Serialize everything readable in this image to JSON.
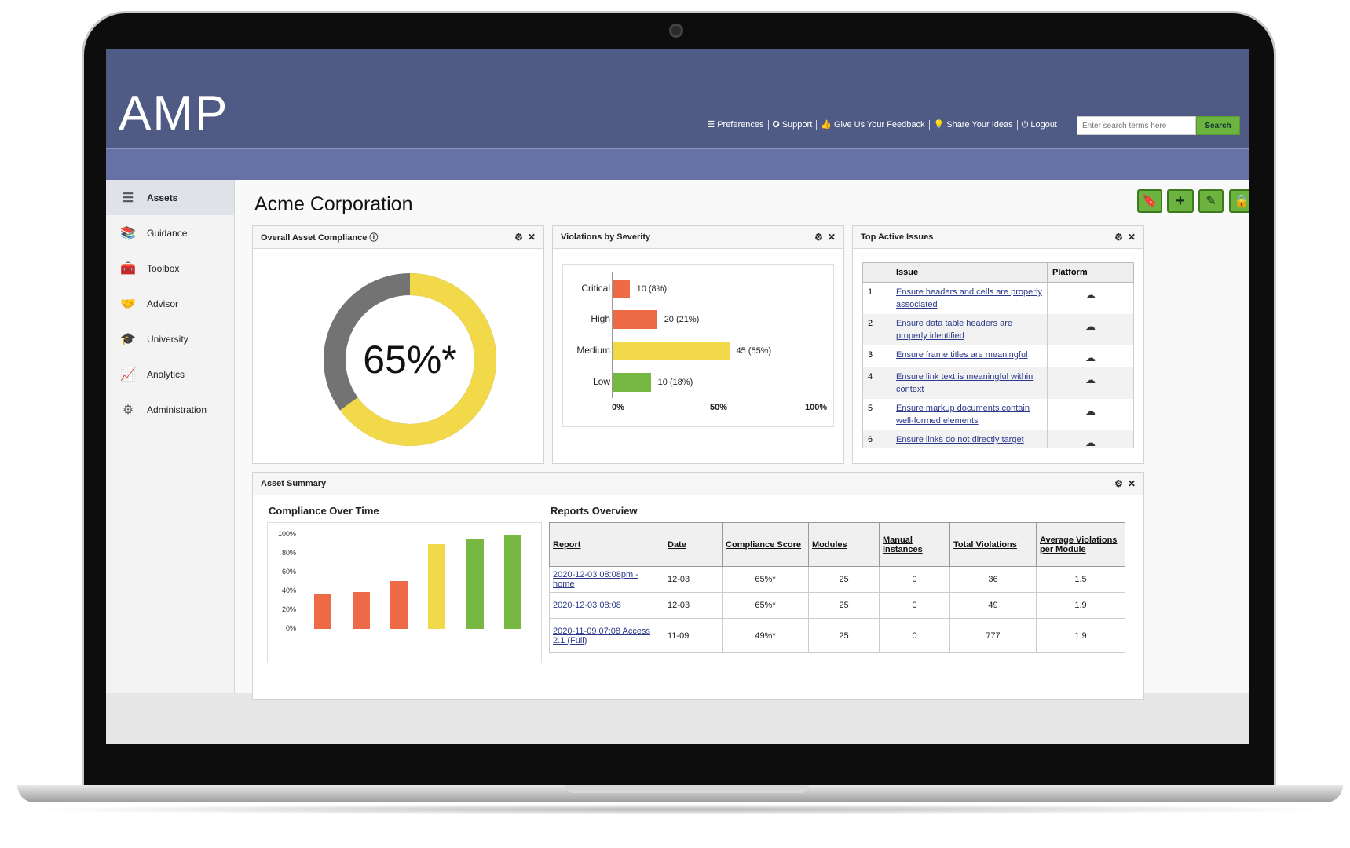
{
  "app": {
    "logo": "AMP"
  },
  "header": {
    "links": [
      {
        "icon": "☰",
        "label": "Preferences"
      },
      {
        "icon": "✪",
        "label": "Support"
      },
      {
        "icon": "👍",
        "label": "Give Us Your Feedback"
      },
      {
        "icon": "💡",
        "label": "Share Your Ideas"
      },
      {
        "icon": "⏻",
        "label": "Logout"
      }
    ],
    "search_placeholder": "Enter search terms here",
    "search_button": "Search"
  },
  "sidebar": {
    "items": [
      {
        "label": "Assets",
        "icon": "☰",
        "active": true
      },
      {
        "label": "Guidance",
        "icon": "📚"
      },
      {
        "label": "Toolbox",
        "icon": "🧰"
      },
      {
        "label": "Advisor",
        "icon": "🤝"
      },
      {
        "label": "University",
        "icon": "🎓"
      },
      {
        "label": "Analytics",
        "icon": "📈"
      },
      {
        "label": "Administration",
        "icon": "⚙"
      }
    ]
  },
  "page": {
    "title": "Acme Corporation",
    "tools": [
      {
        "name": "bookmark",
        "icon": "🔖"
      },
      {
        "name": "add",
        "icon": "+"
      },
      {
        "name": "edit",
        "icon": "✎"
      },
      {
        "name": "lock",
        "icon": "🔒"
      }
    ]
  },
  "compliance_panel": {
    "title": "Overall Asset Compliance",
    "info_icon": "ⓘ",
    "value_label": "65%*",
    "percent": 65,
    "colors": {
      "fill": "#f2d94a",
      "rest": "#737373"
    }
  },
  "severity_panel": {
    "title": "Violations by Severity",
    "chart_data": {
      "type": "bar",
      "orientation": "horizontal",
      "categories": [
        "Critical",
        "High",
        "Medium",
        "Low"
      ],
      "values": [
        10,
        20,
        45,
        10
      ],
      "percents": [
        8,
        21,
        55,
        18
      ],
      "value_labels": [
        "10 (8%)",
        "20 (21%)",
        "45 (55%)",
        "10 (18%)"
      ],
      "colors": [
        "#ee6a46",
        "#ee6a46",
        "#f2d94a",
        "#77b843"
      ],
      "xticks": [
        "0%",
        "50%",
        "100%"
      ],
      "xlim": [
        0,
        100
      ]
    }
  },
  "issues_panel": {
    "title": "Top Active Issues",
    "columns": [
      "",
      "Issue",
      "Platform"
    ],
    "rows": [
      {
        "num": "1",
        "issue": "Ensure headers and cells are properly associated"
      },
      {
        "num": "2",
        "issue": "Ensure data table headers are properly identified"
      },
      {
        "num": "3",
        "issue": "Ensure frame titles are meaningful"
      },
      {
        "num": "4",
        "issue": "Ensure link text is meaningful within context"
      },
      {
        "num": "5",
        "issue": "Ensure markup documents contain well-formed elements"
      },
      {
        "num": "6",
        "issue": "Ensure links do not directly target"
      }
    ],
    "platform_icon": "☁"
  },
  "asset_summary": {
    "title": "Asset Summary",
    "compliance_over_time": {
      "title": "Compliance Over Time",
      "chart_data": {
        "type": "bar",
        "yticks": [
          "100%",
          "80%",
          "60%",
          "40%",
          "20%",
          "0%"
        ],
        "ylim": [
          0,
          100
        ],
        "values": [
          37,
          39,
          51,
          90,
          96,
          100
        ],
        "colors": [
          "#ee6a46",
          "#ee6a46",
          "#ee6a46",
          "#f2d94a",
          "#77b843",
          "#77b843"
        ]
      }
    },
    "reports_overview": {
      "title": "Reports Overview",
      "columns": [
        "Report",
        "Date",
        "Compliance Score",
        "Modules",
        "Manual Instances",
        "Total Violations",
        "Average Violations per Module"
      ],
      "rows": [
        {
          "report": "2020-12-03 08:08pm - home",
          "date": "12-03",
          "score": "65%*",
          "modules": "25",
          "manual": "0",
          "violations": "36",
          "avg": "1.5"
        },
        {
          "report": "2020-12-03 08:08",
          "date": "12-03",
          "score": "65%*",
          "modules": "25",
          "manual": "0",
          "violations": "49",
          "avg": "1.9"
        },
        {
          "report": "2020-11-09 07:08 Access 2.1 (Full)",
          "date": "11-09",
          "score": "49%*",
          "modules": "25",
          "manual": "0",
          "violations": "777",
          "avg": "1.9"
        }
      ]
    }
  },
  "controls": {
    "gear_icon": "⚙",
    "close_icon": "✕"
  }
}
